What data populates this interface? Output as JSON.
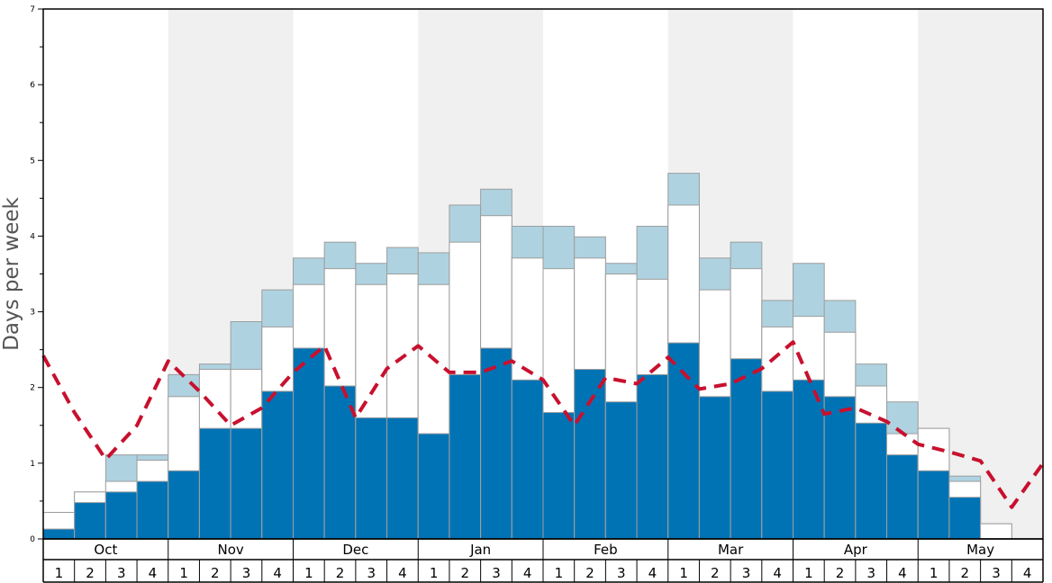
{
  "chart_data": {
    "type": "bar",
    "ylabel": "Days per week",
    "ylim": [
      0,
      7
    ],
    "yticks": [
      "0",
      "1",
      "2",
      "3",
      "4",
      "5",
      "6",
      "7"
    ],
    "months": [
      "Oct",
      "Nov",
      "Dec",
      "Jan",
      "Feb",
      "Mar",
      "Apr",
      "May"
    ],
    "weeks_per_month": [
      "1",
      "2",
      "3",
      "4"
    ],
    "colors": {
      "dark_bar": "#0073b5",
      "white_bar": "#ffffff",
      "light_bar": "#aed2e0",
      "bar_edge": "#9e9e9e",
      "dashed_line": "#c8102e",
      "shade_band": "#f0f0f0"
    },
    "series": [
      {
        "values": [
          0.13,
          0.48,
          0.62,
          0.76,
          0.9,
          1.46,
          1.46,
          1.95,
          2.52,
          2.02,
          1.6,
          1.6,
          1.39,
          2.17,
          2.52,
          2.1,
          1.67,
          2.24,
          1.81,
          2.17,
          2.59,
          1.88,
          2.38,
          1.95,
          2.1,
          1.88,
          1.53,
          1.11,
          0.9,
          0.55,
          0,
          0
        ]
      },
      {
        "values": [
          0.35,
          0.62,
          0.76,
          1.04,
          1.88,
          2.24,
          2.24,
          2.8,
          3.36,
          3.57,
          3.36,
          3.5,
          3.36,
          3.92,
          4.27,
          3.71,
          3.57,
          3.71,
          3.5,
          3.43,
          4.41,
          3.29,
          3.57,
          2.8,
          2.94,
          2.73,
          2.02,
          1.39,
          1.46,
          0.76,
          0.2,
          0
        ]
      },
      {
        "values": [
          0.35,
          0.62,
          1.11,
          1.11,
          2.17,
          2.31,
          2.87,
          3.29,
          3.71,
          3.92,
          3.64,
          3.85,
          3.78,
          4.41,
          4.62,
          4.13,
          4.13,
          3.99,
          3.64,
          4.13,
          4.83,
          3.71,
          3.92,
          3.15,
          3.64,
          3.15,
          2.31,
          1.81,
          1.46,
          0.83,
          0.2,
          0
        ]
      },
      {
        "line_style": "dashed",
        "values": [
          2.42,
          1.67,
          1.05,
          1.5,
          2.35,
          1.95,
          1.5,
          1.73,
          2.2,
          2.55,
          1.6,
          2.25,
          2.55,
          2.2,
          2.2,
          2.35,
          2.1,
          1.5,
          2.13,
          2.05,
          2.4,
          1.98,
          2.05,
          2.25,
          2.6,
          1.65,
          1.73,
          1.55,
          1.25,
          1.15,
          1.03,
          0.42,
          1.0
        ]
      }
    ]
  }
}
